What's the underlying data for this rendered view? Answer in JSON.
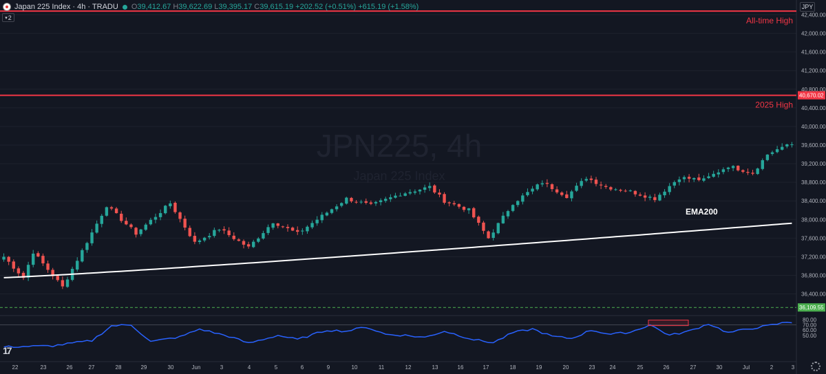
{
  "header": {
    "symbol": "Japan 225 Index · 4h · TRADU",
    "open_key": "O",
    "open": "39,412.67",
    "high_key": "H",
    "high": "39,622.69",
    "low_key": "L",
    "low": "39,395.17",
    "close_key": "C",
    "close": "39,615.19",
    "change": "+202.52 (+0.51%)",
    "change2": "+615.19 (+1.58%)",
    "indicator_count": "2"
  },
  "watermark": {
    "title": "JPN225, 4h",
    "subtitle": "Japan 225 Index"
  },
  "currency": "JPY",
  "colors": {
    "up": "#26a69a",
    "down": "#ef5350",
    "level": "#f23645",
    "ema": "#ffffff",
    "rsi": "#2962ff",
    "support": "#4caf50",
    "bg": "#131722"
  },
  "levels": [
    {
      "label": "All-time High",
      "value": 42480
    },
    {
      "label": "2025 High",
      "value": 40670.02,
      "tag": "40,670.02"
    }
  ],
  "support": {
    "value": 36109.55,
    "tag": "36,109.55"
  },
  "ema_label": "EMA200",
  "chart_data": {
    "type": "candlestick",
    "ylim": [
      35950,
      42600
    ],
    "yticks": [
      "42,400.00",
      "42,000.00",
      "41,600.00",
      "41,200.00",
      "40,800.00",
      "40,400.00",
      "40,000.00",
      "39,600.00",
      "39,200.00",
      "38,800.00",
      "38,400.00",
      "38,000.00",
      "37,600.00",
      "37,200.00",
      "36,800.00",
      "36,400.00"
    ],
    "ytick_values": [
      42400,
      42000,
      41600,
      41200,
      40800,
      40400,
      40000,
      39600,
      39200,
      38800,
      38400,
      38000,
      37600,
      37200,
      36800,
      36400
    ],
    "xticks": [
      "22",
      "23",
      "26",
      "27",
      "28",
      "29",
      "30",
      "Jun",
      "3",
      "4",
      "5",
      "6",
      "9",
      "10",
      "11",
      "12",
      "13",
      "16",
      "17",
      "18",
      "19",
      "20",
      "23",
      "24",
      "25",
      "26",
      "27",
      "30",
      "Jul",
      "2",
      "3"
    ],
    "keyframe_index": [
      0,
      4,
      6,
      12,
      21,
      27,
      34,
      39,
      44,
      50,
      55,
      60,
      66,
      70,
      75,
      81,
      87,
      90,
      95,
      99,
      104,
      110,
      115,
      119,
      123,
      128,
      133,
      138,
      143,
      148,
      153,
      156,
      160
    ],
    "keyframe_close": [
      37200,
      36750,
      37300,
      36550,
      38300,
      37700,
      38350,
      37500,
      37800,
      37400,
      37950,
      37700,
      38150,
      38450,
      38300,
      38550,
      38700,
      38400,
      38200,
      37600,
      38350,
      38800,
      38500,
      38900,
      38700,
      38600,
      38450,
      38900,
      38850,
      39150,
      39000,
      39400,
      39615
    ],
    "ema_start": 36750,
    "ema_end": 37920,
    "rsi": {
      "ylim": [
        0,
        85
      ],
      "yticks": [
        "80.00",
        "70.00",
        "60.00",
        "50.00"
      ],
      "ytick_values": [
        80,
        70,
        60,
        50
      ],
      "keyframes": [
        [
          0,
          28
        ],
        [
          10,
          30
        ],
        [
          18,
          40
        ],
        [
          22,
          68
        ],
        [
          26,
          70
        ],
        [
          30,
          38
        ],
        [
          36,
          47
        ],
        [
          40,
          62
        ],
        [
          46,
          48
        ],
        [
          50,
          35
        ],
        [
          56,
          50
        ],
        [
          60,
          42
        ],
        [
          66,
          60
        ],
        [
          70,
          58
        ],
        [
          74,
          66
        ],
        [
          78,
          52
        ],
        [
          82,
          50
        ],
        [
          86,
          46
        ],
        [
          90,
          58
        ],
        [
          96,
          42
        ],
        [
          100,
          36
        ],
        [
          104,
          55
        ],
        [
          108,
          62
        ],
        [
          112,
          48
        ],
        [
          116,
          44
        ],
        [
          120,
          60
        ],
        [
          124,
          52
        ],
        [
          128,
          56
        ],
        [
          132,
          70
        ],
        [
          136,
          50
        ],
        [
          140,
          58
        ],
        [
          144,
          72
        ],
        [
          148,
          55
        ],
        [
          152,
          62
        ],
        [
          156,
          68
        ],
        [
          160,
          75
        ]
      ]
    }
  }
}
